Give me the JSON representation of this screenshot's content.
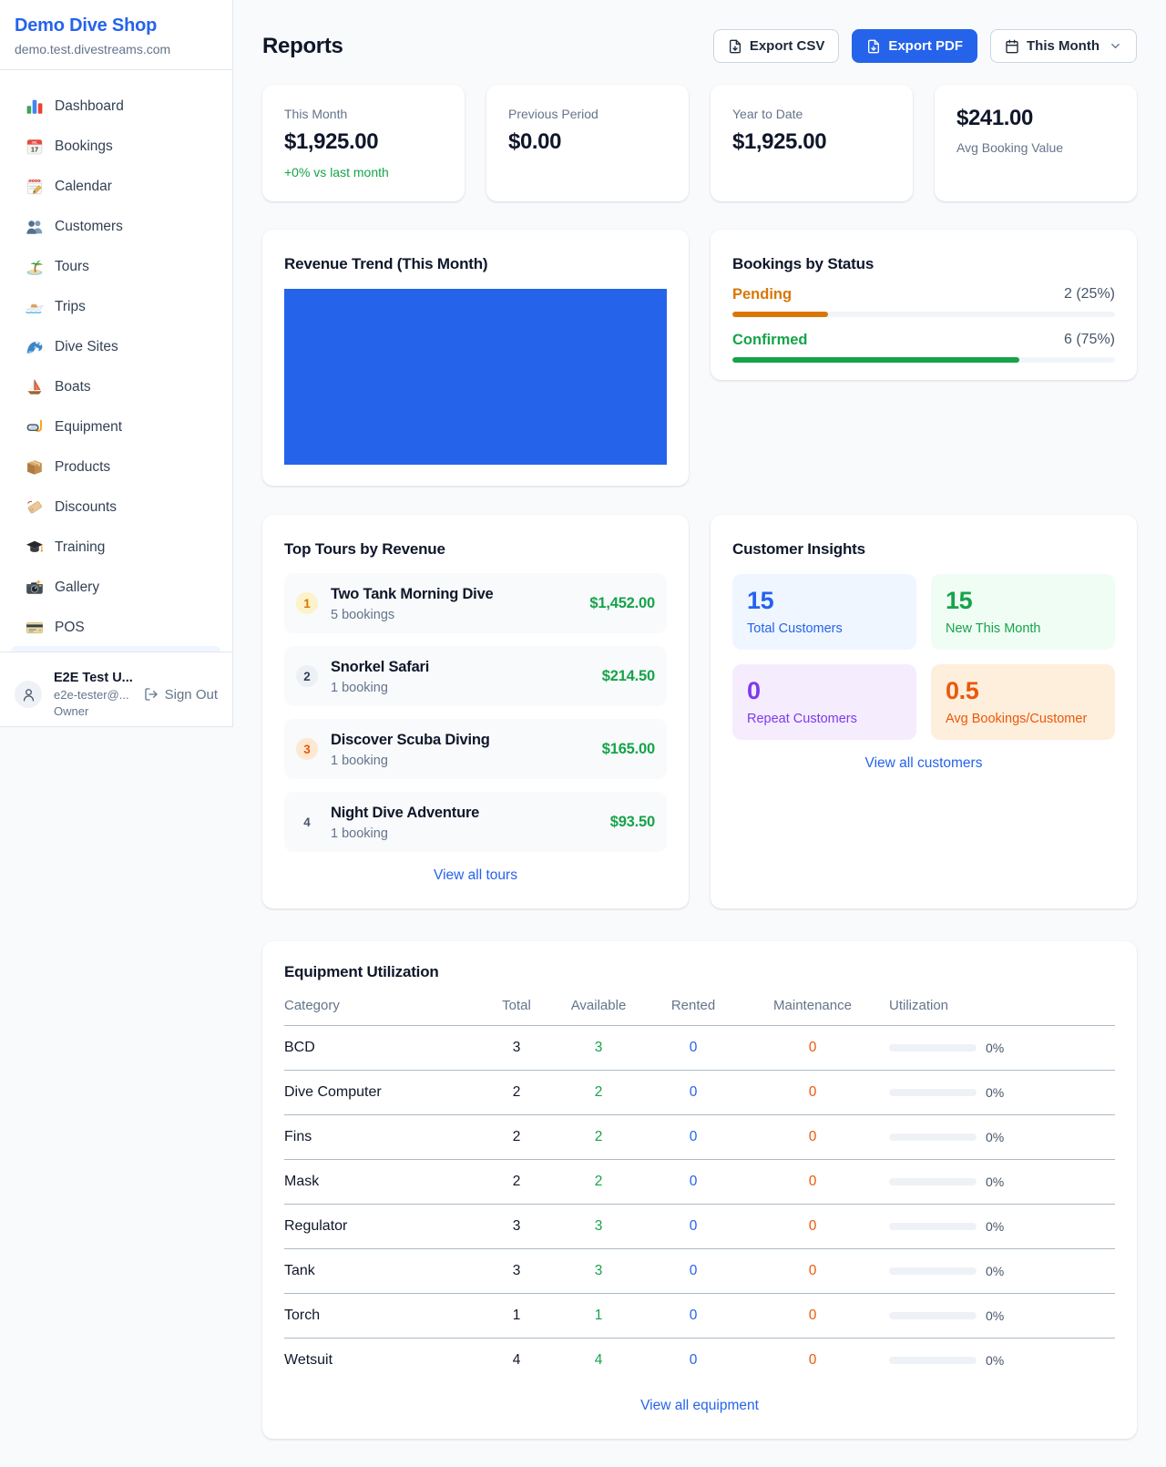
{
  "colors": {
    "brand_blue": "#2563eb",
    "green": "#16a34a",
    "amber": "#d97706",
    "orange": "#ea580c",
    "purple": "#7c3aed",
    "page_background": "#f8fafc"
  },
  "sidebar": {
    "brand": {
      "name": "Demo Dive Shop",
      "domain": "demo.test.divestreams.com"
    },
    "nav": [
      {
        "icon": "bar-chart-emoji-icon",
        "label": "Dashboard"
      },
      {
        "icon": "tear-off-calendar-emoji-icon",
        "label": "Bookings"
      },
      {
        "icon": "notepad-calendar-emoji-icon",
        "label": "Calendar"
      },
      {
        "icon": "people-emoji-icon",
        "label": "Customers"
      },
      {
        "icon": "island-emoji-icon",
        "label": "Tours"
      },
      {
        "icon": "speedboat-emoji-icon",
        "label": "Trips"
      },
      {
        "icon": "wave-emoji-icon",
        "label": "Dive Sites"
      },
      {
        "icon": "sailboat-emoji-icon",
        "label": "Boats"
      },
      {
        "icon": "dive-mask-emoji-icon",
        "label": "Equipment"
      },
      {
        "icon": "package-emoji-icon",
        "label": "Products"
      },
      {
        "icon": "label-tag-emoji-icon",
        "label": "Discounts"
      },
      {
        "icon": "graduation-cap-emoji-icon",
        "label": "Training"
      },
      {
        "icon": "camera-emoji-icon",
        "label": "Gallery"
      },
      {
        "icon": "credit-card-emoji-icon",
        "label": "POS"
      }
    ],
    "user": {
      "name": "E2E Test U...",
      "email": "e2e-tester@...",
      "role": "Owner",
      "sign_out_label": "Sign Out"
    }
  },
  "header": {
    "title": "Reports",
    "export_csv_label": "Export CSV",
    "export_pdf_label": "Export PDF",
    "period_label": "This Month"
  },
  "stats": [
    {
      "label": "This Month",
      "value": "$1,925.00",
      "delta": "+0% vs last month",
      "layout": "label-first"
    },
    {
      "label": "Previous Period",
      "value": "$0.00",
      "delta": "",
      "layout": "label-first"
    },
    {
      "label": "Year to Date",
      "value": "$1,925.00",
      "delta": "",
      "layout": "label-first"
    },
    {
      "label": "Avg Booking Value",
      "value": "$241.00",
      "delta": "",
      "layout": "value-first"
    }
  ],
  "revenue_trend": {
    "title": "Revenue Trend (This Month)",
    "plot_fill_color": "#2563eb"
  },
  "bookings_by_status": {
    "title": "Bookings by Status",
    "rows": [
      {
        "label": "Pending",
        "count_text": "2 (25%)",
        "pct": 25,
        "theme": "amber"
      },
      {
        "label": "Confirmed",
        "count_text": "6 (75%)",
        "pct": 75,
        "theme": "green"
      }
    ]
  },
  "top_tours": {
    "title": "Top Tours by Revenue",
    "items": [
      {
        "rank": "1",
        "theme": "gold",
        "name": "Two Tank Morning Dive",
        "bookings": "5 bookings",
        "revenue": "$1,452.00"
      },
      {
        "rank": "2",
        "theme": "silver",
        "name": "Snorkel Safari",
        "bookings": "1 booking",
        "revenue": "$214.50"
      },
      {
        "rank": "3",
        "theme": "bronze",
        "name": "Discover Scuba Diving",
        "bookings": "1 booking",
        "revenue": "$165.00"
      },
      {
        "rank": "4",
        "theme": "plain",
        "name": "Night Dive Adventure",
        "bookings": "1 booking",
        "revenue": "$93.50"
      }
    ],
    "link_label": "View all tours"
  },
  "customer_insights": {
    "title": "Customer Insights",
    "tiles": [
      {
        "value": "15",
        "label": "Total Customers",
        "theme": "blue"
      },
      {
        "value": "15",
        "label": "New This Month",
        "theme": "green"
      },
      {
        "value": "0",
        "label": "Repeat Customers",
        "theme": "purple"
      },
      {
        "value": "0.5",
        "label": "Avg Bookings/Customer",
        "theme": "orange"
      }
    ],
    "link_label": "View all customers"
  },
  "equipment_utilization": {
    "title": "Equipment Utilization",
    "columns": [
      "Category",
      "Total",
      "Available",
      "Rented",
      "Maintenance",
      "Utilization"
    ],
    "rows": [
      {
        "category": "BCD",
        "total": "3",
        "available": "3",
        "rented": "0",
        "maintenance": "0",
        "utilization_pct": 0,
        "utilization_text": "0%"
      },
      {
        "category": "Dive Computer",
        "total": "2",
        "available": "2",
        "rented": "0",
        "maintenance": "0",
        "utilization_pct": 0,
        "utilization_text": "0%"
      },
      {
        "category": "Fins",
        "total": "2",
        "available": "2",
        "rented": "0",
        "maintenance": "0",
        "utilization_pct": 0,
        "utilization_text": "0%"
      },
      {
        "category": "Mask",
        "total": "2",
        "available": "2",
        "rented": "0",
        "maintenance": "0",
        "utilization_pct": 0,
        "utilization_text": "0%"
      },
      {
        "category": "Regulator",
        "total": "3",
        "available": "3",
        "rented": "0",
        "maintenance": "0",
        "utilization_pct": 0,
        "utilization_text": "0%"
      },
      {
        "category": "Tank",
        "total": "3",
        "available": "3",
        "rented": "0",
        "maintenance": "0",
        "utilization_pct": 0,
        "utilization_text": "0%"
      },
      {
        "category": "Torch",
        "total": "1",
        "available": "1",
        "rented": "0",
        "maintenance": "0",
        "utilization_pct": 0,
        "utilization_text": "0%"
      },
      {
        "category": "Wetsuit",
        "total": "4",
        "available": "4",
        "rented": "0",
        "maintenance": "0",
        "utilization_pct": 0,
        "utilization_text": "0%"
      }
    ],
    "link_label": "View all equipment"
  }
}
